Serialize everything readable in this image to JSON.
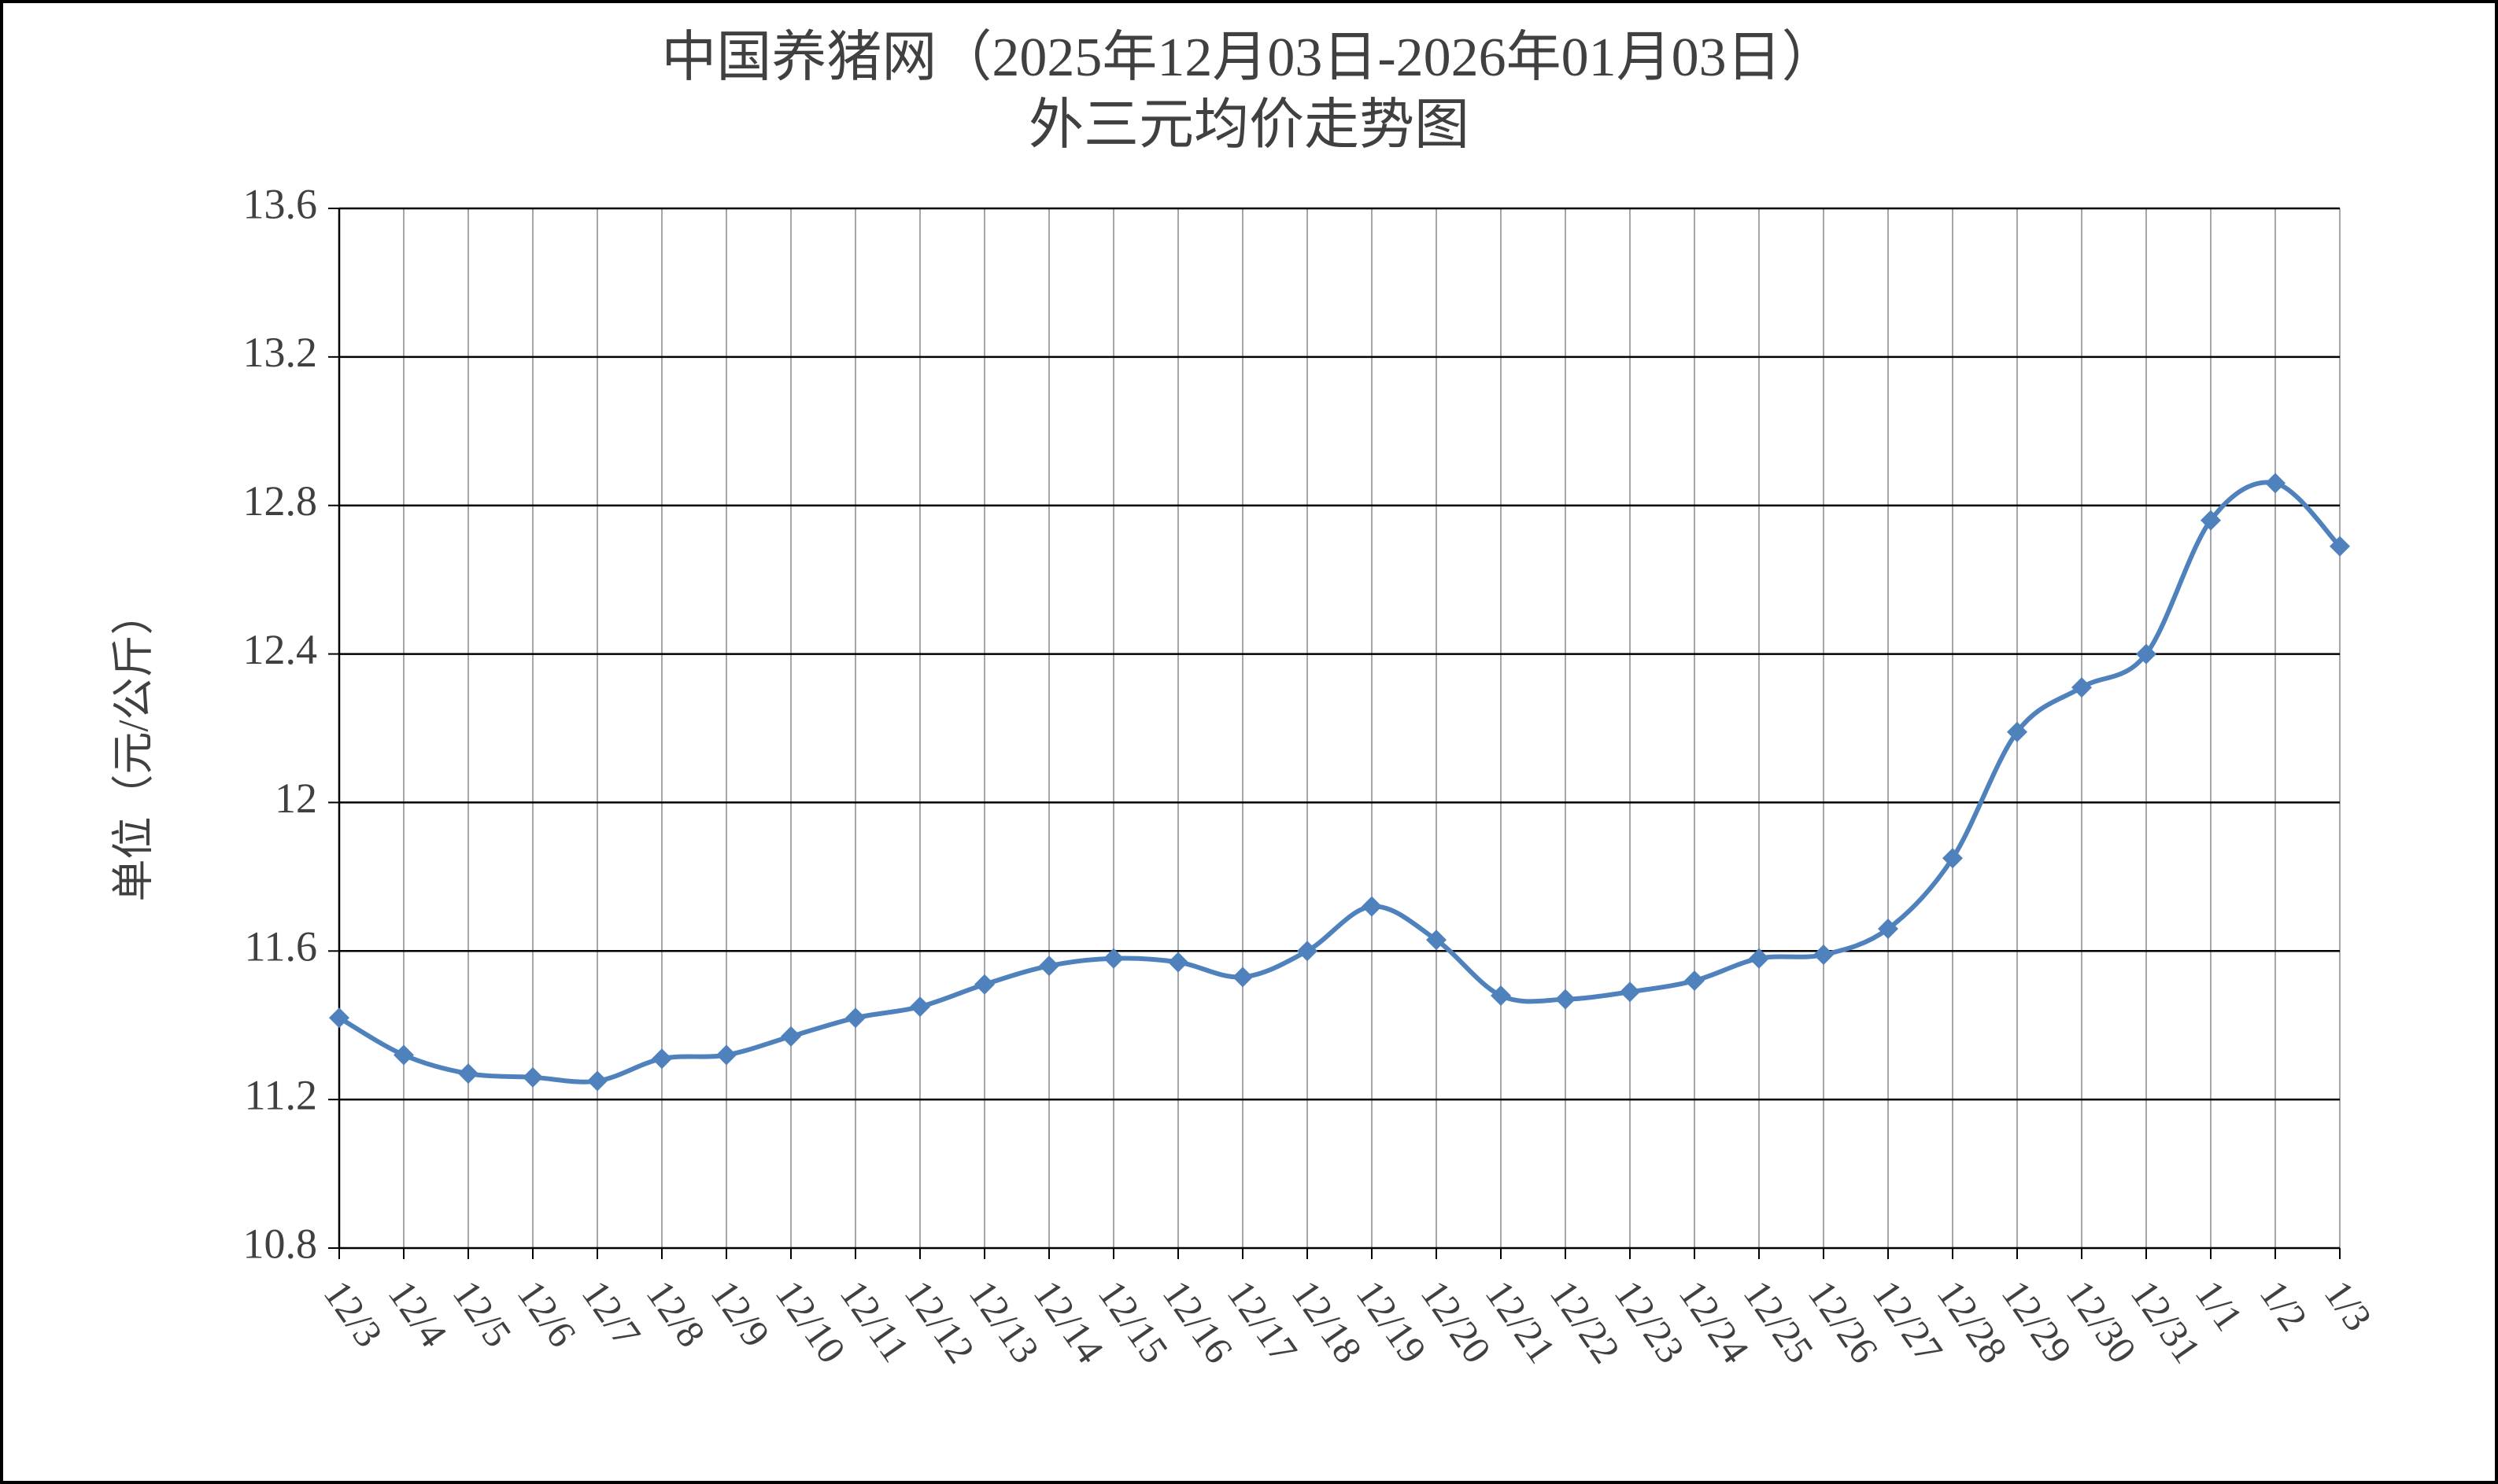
{
  "chart_data": {
    "type": "line",
    "title": "中国养猪网（2025年12月03日-2026年01月03日）",
    "subtitle": "外三元均价走势图",
    "y_label": "单位（元/公斤）",
    "categories": [
      "12/3",
      "12/4",
      "12/5",
      "12/6",
      "12/7",
      "12/8",
      "12/9",
      "12/10",
      "12/11",
      "12/12",
      "12/13",
      "12/14",
      "12/15",
      "12/16",
      "12/17",
      "12/18",
      "12/19",
      "12/20",
      "12/21",
      "12/22",
      "12/23",
      "12/24",
      "12/25",
      "12/26",
      "12/27",
      "12/28",
      "12/29",
      "12/30",
      "12/31",
      "1/1",
      "1/2",
      "1/3"
    ],
    "series": [
      {
        "name": "外三元均价",
        "color": "#4f81bd",
        "values": [
          11.42,
          11.32,
          11.27,
          11.26,
          11.25,
          11.31,
          11.32,
          11.37,
          11.42,
          11.45,
          11.51,
          11.56,
          11.58,
          11.57,
          11.53,
          11.6,
          11.72,
          11.63,
          11.48,
          11.47,
          11.49,
          11.52,
          11.58,
          11.59,
          11.66,
          11.85,
          12.19,
          12.31,
          12.4,
          12.76,
          12.86,
          12.69
        ]
      }
    ],
    "ylim": [
      10.8,
      13.6
    ],
    "yticks": [
      10.8,
      11.2,
      11.6,
      12,
      12.4,
      12.8,
      13.2,
      13.6
    ],
    "grid": true,
    "smooth": true,
    "marker": "diamond"
  }
}
